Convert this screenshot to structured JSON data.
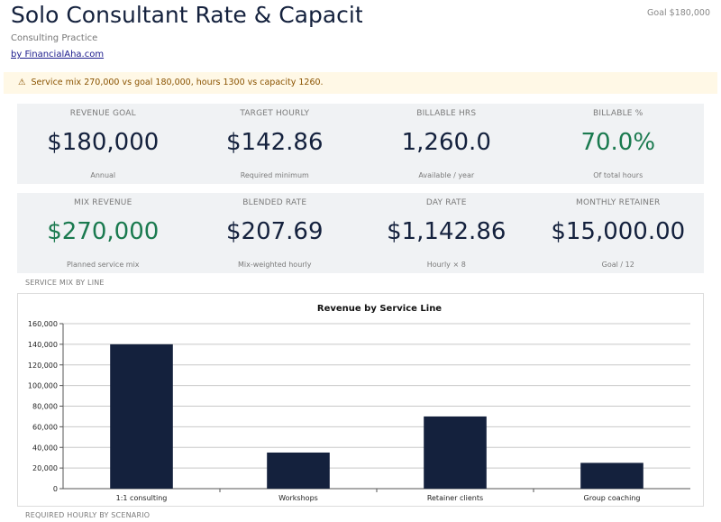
{
  "header": {
    "title": "Solo Consultant Rate & Capacity",
    "goal_badge": "Goal $180,000",
    "subtitle": "Consulting Practice",
    "byline": "by FinancialAha.com"
  },
  "alert": {
    "icon": "warning-icon",
    "text": "Service mix 270,000 vs goal 180,000, hours 1300 vs capacity 1260."
  },
  "kpis_row1": [
    {
      "label": "REVENUE GOAL",
      "value": "$180,000",
      "sub": "Annual",
      "color": "#14213d"
    },
    {
      "label": "TARGET HOURLY",
      "value": "$142.86",
      "sub": "Required minimum",
      "color": "#14213d"
    },
    {
      "label": "BILLABLE HRS",
      "value": "1,260.0",
      "sub": "Available / year",
      "color": "#14213d"
    },
    {
      "label": "BILLABLE %",
      "value": "70.0%",
      "sub": "Of total hours",
      "color": "#1a7a4f"
    }
  ],
  "kpis_row2": [
    {
      "label": "MIX REVENUE",
      "value": "$270,000",
      "sub": "Planned service mix",
      "color": "#1a7a4f"
    },
    {
      "label": "BLENDED RATE",
      "value": "$207.69",
      "sub": "Mix-weighted hourly",
      "color": "#14213d"
    },
    {
      "label": "DAY RATE",
      "value": "$1,142.86",
      "sub": "Hourly × 8",
      "color": "#14213d"
    },
    {
      "label": "MONTHLY RETAINER",
      "value": "$15,000.00",
      "sub": "Goal / 12",
      "color": "#14213d"
    }
  ],
  "sections": {
    "mix_label": "SERVICE MIX BY LINE",
    "scenario_label": "REQUIRED HOURLY BY SCENARIO"
  },
  "chart_data": {
    "type": "bar",
    "title": "Revenue by Service Line",
    "categories": [
      "1:1 consulting",
      "Workshops",
      "Retainer clients",
      "Group coaching"
    ],
    "values": [
      140000,
      35000,
      70000,
      25000
    ],
    "ylim": [
      0,
      160000
    ],
    "yticks": [
      0,
      20000,
      40000,
      60000,
      80000,
      100000,
      120000,
      140000,
      160000
    ],
    "ytick_labels": [
      "0",
      "20,000",
      "40,000",
      "60,000",
      "80,000",
      "100,000",
      "120,000",
      "140,000",
      "160,000"
    ],
    "xlabel": "",
    "ylabel": "",
    "grid": true,
    "bar_color": "#14213d"
  }
}
